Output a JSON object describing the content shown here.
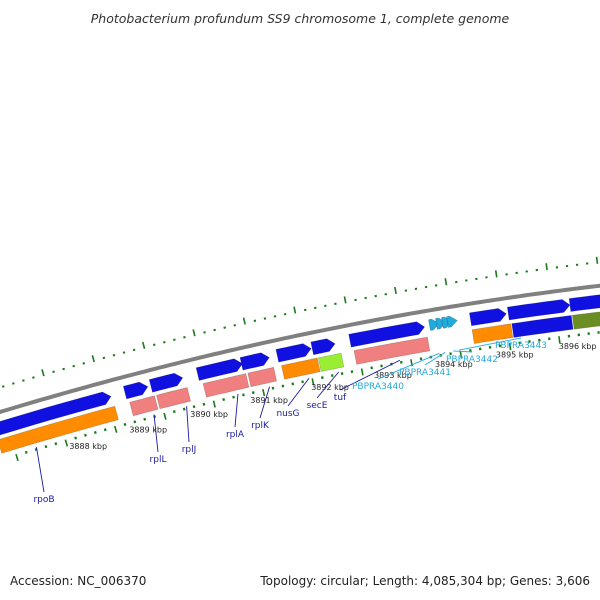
{
  "title": "Photobacterium profundum SS9 chromosome 1, complete genome",
  "footer": {
    "accession": "Accession: NC_006370",
    "summary": "Topology: circular; Length: 4,085,304 bp; Genes: 3,606"
  },
  "colors": {
    "backbone": "#808080",
    "forward_gene": "#1010e0",
    "cds_orange": "#ff8c00",
    "rna_pink": "#f08080",
    "green": "#99ee33",
    "olive": "#6b8e23",
    "tick": "#1a7a1a",
    "label_dark": "#1a1aa0",
    "label_light": "#22aadd"
  },
  "scale": {
    "unit": "kbp",
    "labels": [
      {
        "kbp": 3888,
        "text": "3888 kbp"
      },
      {
        "kbp": 3889,
        "text": "3889 kbp"
      },
      {
        "kbp": 3890,
        "text": "3890 kbp"
      },
      {
        "kbp": 3891,
        "text": "3891 kbp"
      },
      {
        "kbp": 3892,
        "text": "3892 kbp"
      },
      {
        "kbp": 3893,
        "text": "3893 kbp"
      },
      {
        "kbp": 3894,
        "text": "3894 kbp"
      },
      {
        "kbp": 3895,
        "text": "3895 kbp"
      },
      {
        "kbp": 3896,
        "text": "3896 kbp"
      }
    ]
  },
  "genes": [
    {
      "name": "rpoB",
      "color": "label_dark"
    },
    {
      "name": "rplL",
      "color": "label_dark"
    },
    {
      "name": "rplJ",
      "color": "label_dark"
    },
    {
      "name": "rplA",
      "color": "label_dark"
    },
    {
      "name": "rplK",
      "color": "label_dark"
    },
    {
      "name": "nusG",
      "color": "label_dark"
    },
    {
      "name": "secE",
      "color": "label_dark"
    },
    {
      "name": "tuf",
      "color": "label_dark"
    },
    {
      "name": "PBPRA3440",
      "color": "label_light"
    },
    {
      "name": "PBPRA3441",
      "color": "label_light"
    },
    {
      "name": "PBPRA3442",
      "color": "label_light"
    },
    {
      "name": "PBPRA3443",
      "color": "label_light"
    }
  ]
}
